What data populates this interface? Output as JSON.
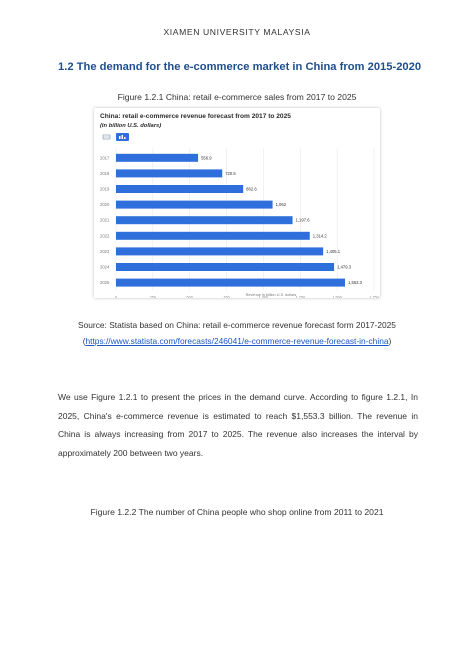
{
  "header": {
    "university": "XIAMEN UNIVERSITY MALAYSIA"
  },
  "section": {
    "title": "1.2 The demand for the e-commerce market in China from 2015-2020"
  },
  "figure1": {
    "caption": "Figure 1.2.1 China: retail e-commerce sales from 2017 to 2025",
    "source_text": "Source: Statista based on China: retail e-commerce revenue forecast form 2017-2025",
    "source_link_open": "(",
    "source_link": "https://www.statista.com/forecasts/246041/e-commerce-revenue-forecast-in-china",
    "source_link_close": ")"
  },
  "chart_data": {
    "type": "bar",
    "orientation": "horizontal",
    "title": "China: retail e-commerce revenue forecast from 2017 to 2025",
    "subtitle": "(in billion U.S. dollars)",
    "categories": [
      "2017",
      "2018",
      "2019",
      "2020",
      "2021",
      "2022",
      "2023",
      "2024",
      "2025"
    ],
    "values": [
      556.9,
      720.5,
      862.6,
      1062,
      1197.6,
      1314.2,
      1405.1,
      1479.3,
      1553.3
    ],
    "data_labels": [
      "556.9",
      "720.5",
      "862.6",
      "1,062",
      "1,197.6",
      "1,314.2",
      "1,405.1",
      "1,479.3",
      "1,553.3"
    ],
    "x_ticks": [
      "0",
      "250",
      "500",
      "750",
      "1,000",
      "1,250",
      "1,500",
      "1,750"
    ],
    "xlabel": "Revenue in billion U.S. dollars",
    "xlim": [
      0,
      1750
    ],
    "grid": true,
    "bar_color": "#2f6fdc"
  },
  "paragraph": "We use Figure 1.2.1 to present the prices in the demand curve. According to figure 1.2.1, In 2025, China's e-commerce revenue is estimated to reach $1,553.3 billion. The revenue in China is always increasing from 2017 to 2025. The revenue also increases the interval by approximately 200 between two years.",
  "figure2": {
    "caption": "Figure 1.2.2 The number of China people who shop online from 2011 to 2021"
  }
}
